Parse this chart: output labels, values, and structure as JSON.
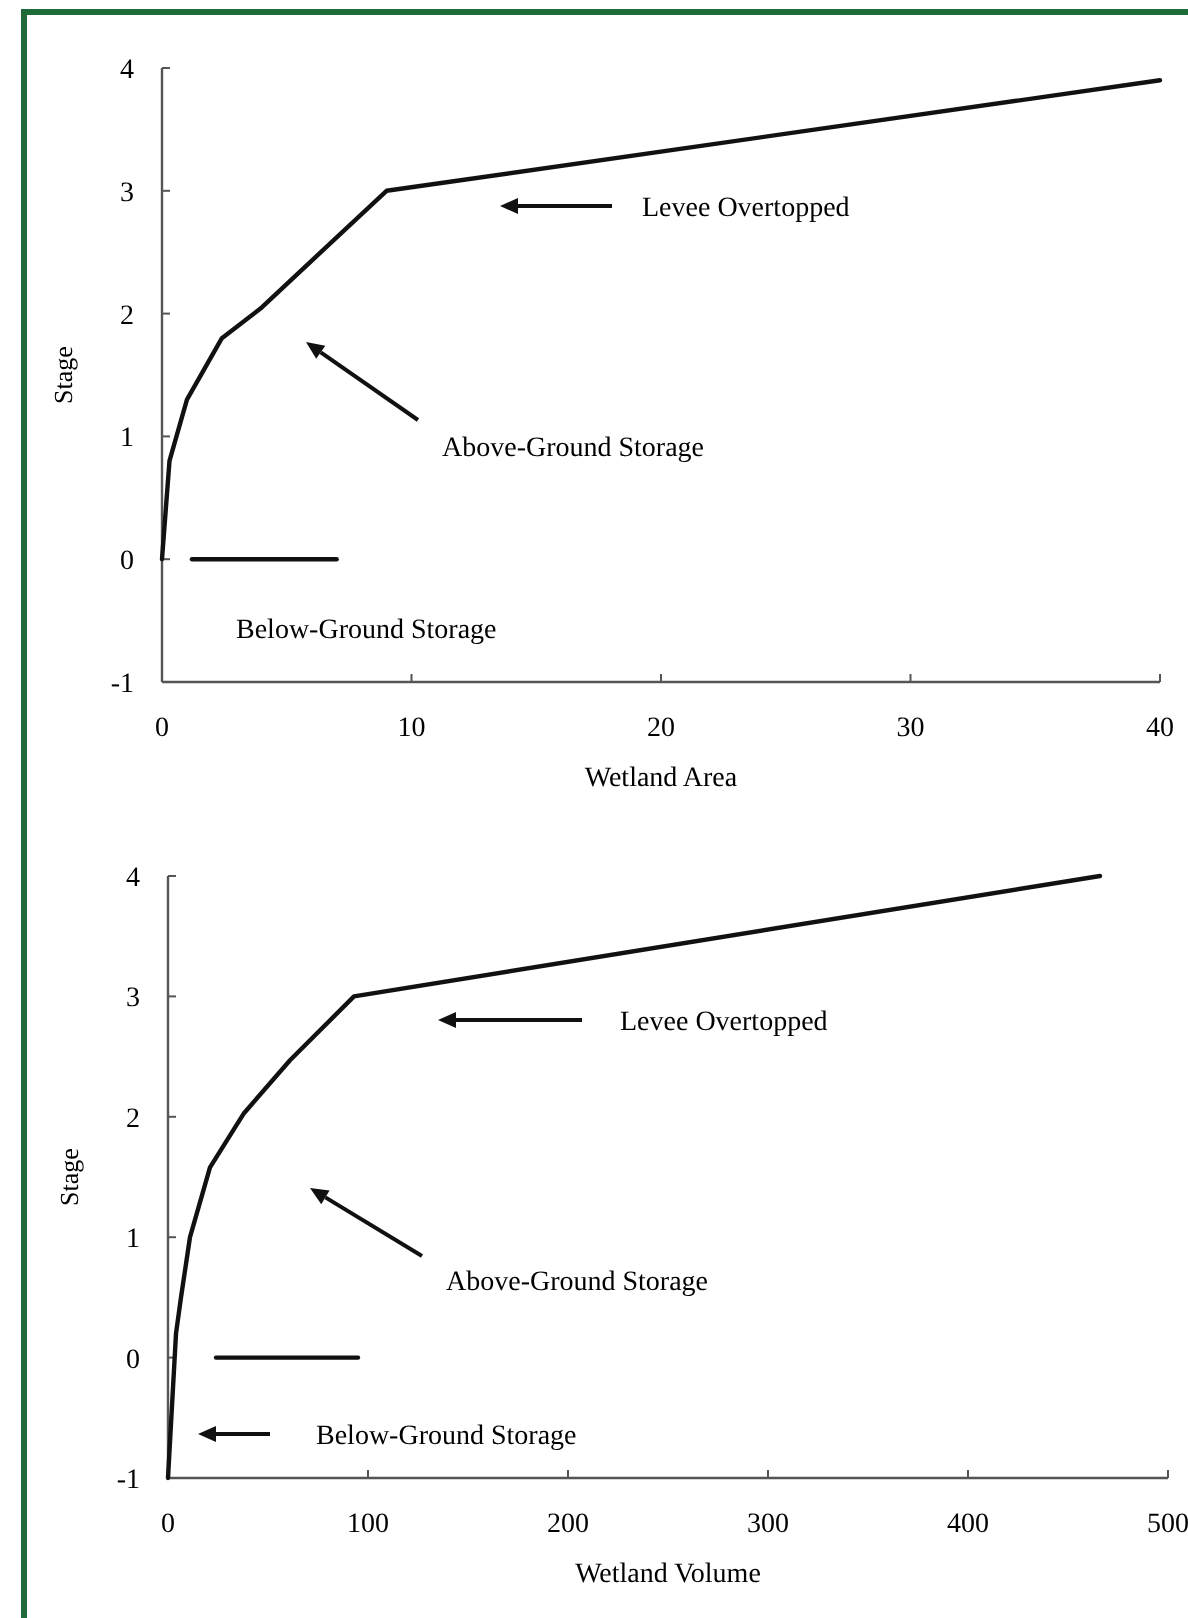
{
  "chart_data": [
    {
      "type": "line",
      "xlabel": "Wetland Area",
      "ylabel": "Stage",
      "xlim": [
        0,
        40
      ],
      "xticks": [
        0,
        10,
        20,
        30,
        40
      ],
      "ylim": [
        -1,
        4
      ],
      "yticks": [
        -1,
        0,
        1,
        2,
        3,
        4
      ],
      "grid": false,
      "marker": "none",
      "line_style": "solid",
      "series": [
        {
          "color": "#111111",
          "x": [
            0,
            0.3,
            1,
            2.4,
            4,
            6.1,
            9,
            40
          ],
          "values": [
            0,
            0.8,
            1.3,
            1.8,
            2.05,
            2.45,
            3,
            3.9
          ]
        },
        {
          "color": "#111111",
          "x": [
            1.2,
            7
          ],
          "values": [
            0,
            0
          ]
        }
      ],
      "annotations": [
        "Levee Overtopped",
        "Above-Ground Storage",
        "Below-Ground Storage"
      ]
    },
    {
      "type": "line",
      "xlabel": "Wetland Volume",
      "ylabel": "Stage",
      "xlim": [
        0,
        500
      ],
      "xticks": [
        0,
        100,
        200,
        300,
        400,
        500
      ],
      "ylim": [
        -1,
        4
      ],
      "yticks": [
        -1,
        0,
        1,
        2,
        3,
        4
      ],
      "grid": false,
      "marker": "none",
      "line_style": "solid",
      "series": [
        {
          "color": "#111111",
          "x": [
            0,
            4,
            6.5,
            11,
            21,
            38,
            61,
            93,
            466
          ],
          "values": [
            -1,
            0.2,
            0.5,
            1,
            1.58,
            2.03,
            2.47,
            3,
            4
          ]
        },
        {
          "color": "#111111",
          "x": [
            24,
            95
          ],
          "values": [
            0,
            0
          ]
        }
      ],
      "annotations": [
        "Levee Overtopped",
        "Above-Ground Storage",
        "Below-Ground Storage"
      ]
    }
  ]
}
